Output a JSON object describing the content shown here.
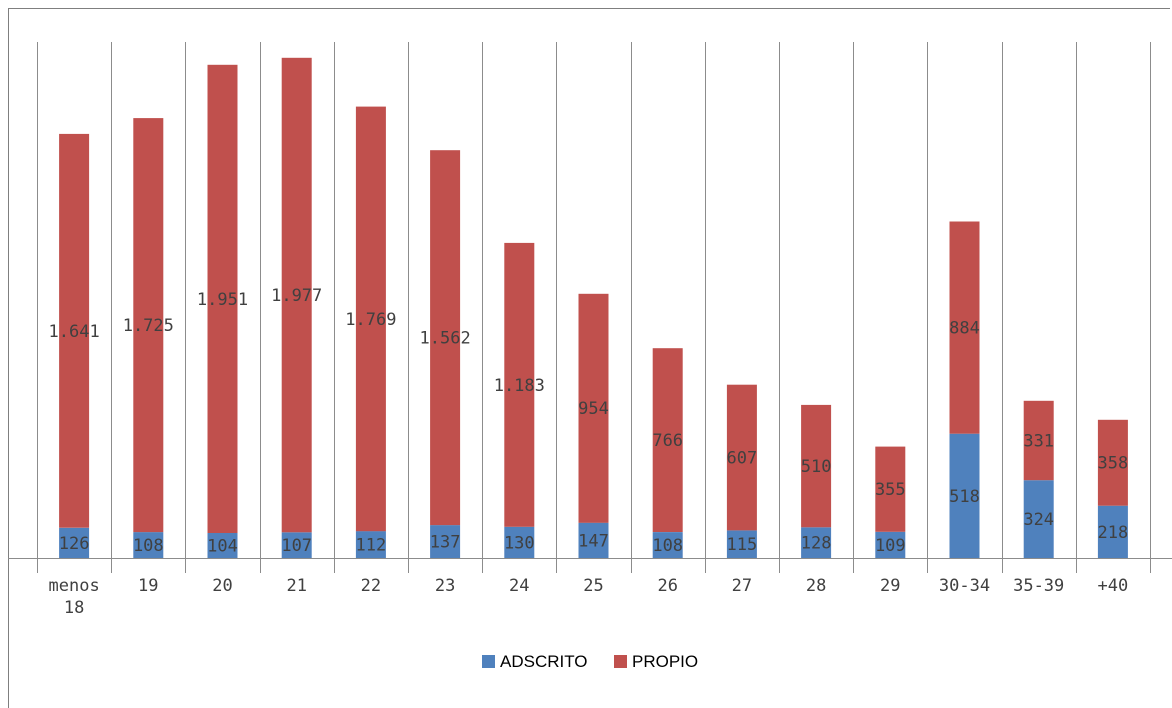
{
  "chart_data": {
    "type": "bar",
    "stacked": true,
    "categories": [
      "menos 18",
      "19",
      "20",
      "21",
      "22",
      "23",
      "24",
      "25",
      "26",
      "27",
      "28",
      "29",
      "30-34",
      "35-39",
      "+40"
    ],
    "series": [
      {
        "name": "ADSCRITO",
        "color": "#4f81bd",
        "values": [
          126,
          108,
          104,
          107,
          112,
          137,
          130,
          147,
          108,
          115,
          128,
          109,
          518,
          324,
          218
        ],
        "labels": [
          "126",
          "108",
          "104",
          "107",
          "112",
          "137",
          "130",
          "147",
          "108",
          "115",
          "128",
          "109",
          "518",
          "324",
          "218"
        ]
      },
      {
        "name": "PROPIO",
        "color": "#c0504d",
        "values": [
          1641,
          1725,
          1951,
          1977,
          1769,
          1562,
          1183,
          954,
          766,
          607,
          510,
          355,
          884,
          331,
          358
        ],
        "labels": [
          "1.641",
          "1.725",
          "1.951",
          "1.977",
          "1.769",
          "1.562",
          "1.183",
          "954",
          "766",
          "607",
          "510",
          "355",
          "884",
          "331",
          "358"
        ]
      }
    ],
    "ylim": [
      0,
      2150
    ],
    "grid": "vertical",
    "legend_position": "bottom",
    "title": "",
    "xlabel": "",
    "ylabel": ""
  }
}
